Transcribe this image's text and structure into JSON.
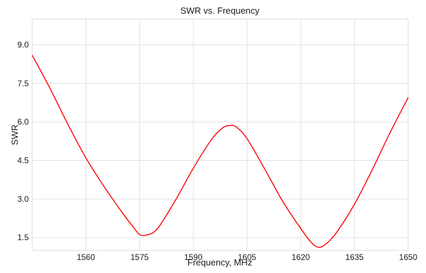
{
  "chart_data": {
    "type": "line",
    "title": "SWR vs. Frequency",
    "xlabel": "Frequency, MHz",
    "ylabel": "SWR",
    "xlim": [
      1545,
      1650
    ],
    "ylim": [
      1.0,
      10.0
    ],
    "xticks": [
      1560,
      1575,
      1590,
      1605,
      1620,
      1635,
      1650
    ],
    "yticks": [
      1.5,
      3.0,
      4.5,
      6.0,
      7.5,
      9.0
    ],
    "xtick_labels": [
      "1560",
      "1575",
      "1590",
      "1605",
      "1620",
      "1635",
      "1650"
    ],
    "ytick_labels": [
      "1.5",
      "3.0",
      "4.5",
      "6.0",
      "7.5",
      "9.0"
    ],
    "grid": true,
    "series": [
      {
        "color": "#ff0000",
        "x": [
          1545,
          1550,
          1555,
          1560,
          1565,
          1570,
          1573,
          1575,
          1577,
          1580,
          1585,
          1590,
          1595,
          1598,
          1600,
          1602,
          1605,
          1610,
          1615,
          1620,
          1623,
          1625,
          1627,
          1630,
          1635,
          1640,
          1645,
          1650
        ],
        "y": [
          8.6,
          7.3,
          5.9,
          4.6,
          3.5,
          2.5,
          1.95,
          1.62,
          1.6,
          1.85,
          2.95,
          4.2,
          5.3,
          5.75,
          5.86,
          5.8,
          5.35,
          4.15,
          2.9,
          1.85,
          1.3,
          1.12,
          1.25,
          1.7,
          2.8,
          4.15,
          5.6,
          6.95
        ]
      }
    ]
  }
}
